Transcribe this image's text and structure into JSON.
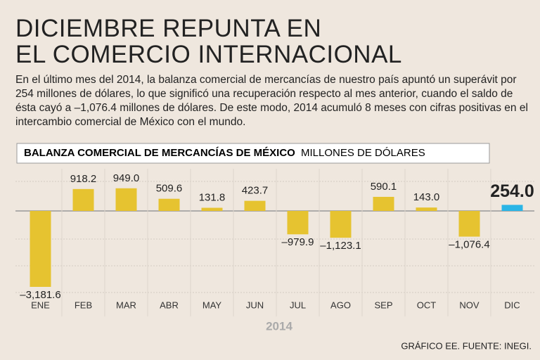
{
  "header": {
    "title_lines": [
      "DICIEMBRE REPUNTA EN",
      "EL COMERCIO INTERNACIONAL"
    ],
    "text": "En el último mes del 2014, la balanza comercial de mercancías de nuestro país apuntó un superávit por 254 millones de dólares, lo que significó una recuperación respecto al mes anterior, cuando el saldo de ésta cayó a –1,076.4 millones de dólares. De este modo, 2014 acumuló 8 meses con cifras positivas en el intercambio comercial de México con el mundo."
  },
  "chart_data": {
    "type": "bar",
    "title": "BALANZA COMERCIAL DE MERCANCÍAS DE MÉXICO",
    "subtitle": "MILLONES DE DÓLARES",
    "x_label": "2014",
    "categories": [
      "ENE",
      "FEB",
      "MAR",
      "ABR",
      "MAY",
      "JUN",
      "JUL",
      "AGO",
      "SEP",
      "OCT",
      "NOV",
      "DIC"
    ],
    "values": [
      -3181.6,
      918.2,
      949.0,
      509.6,
      131.8,
      423.7,
      -979.9,
      -1123.1,
      590.1,
      143.0,
      -1076.4,
      254.0
    ],
    "value_labels": [
      "–3,181.6",
      "918.2",
      "949.0",
      "509.6",
      "131.8",
      "423.7",
      "–979.9",
      "–1,123.1",
      "590.1",
      "143.0",
      "–1,076.4",
      "254.0"
    ],
    "colors": [
      "#e6c330",
      "#e6c330",
      "#e6c330",
      "#e6c330",
      "#e6c330",
      "#e6c330",
      "#e6c330",
      "#e6c330",
      "#e6c330",
      "#e6c330",
      "#e6c330",
      "#2bb5e6"
    ]
  },
  "footer": {
    "source": "GRÁFICO EE. FUENTE: INEGI."
  }
}
